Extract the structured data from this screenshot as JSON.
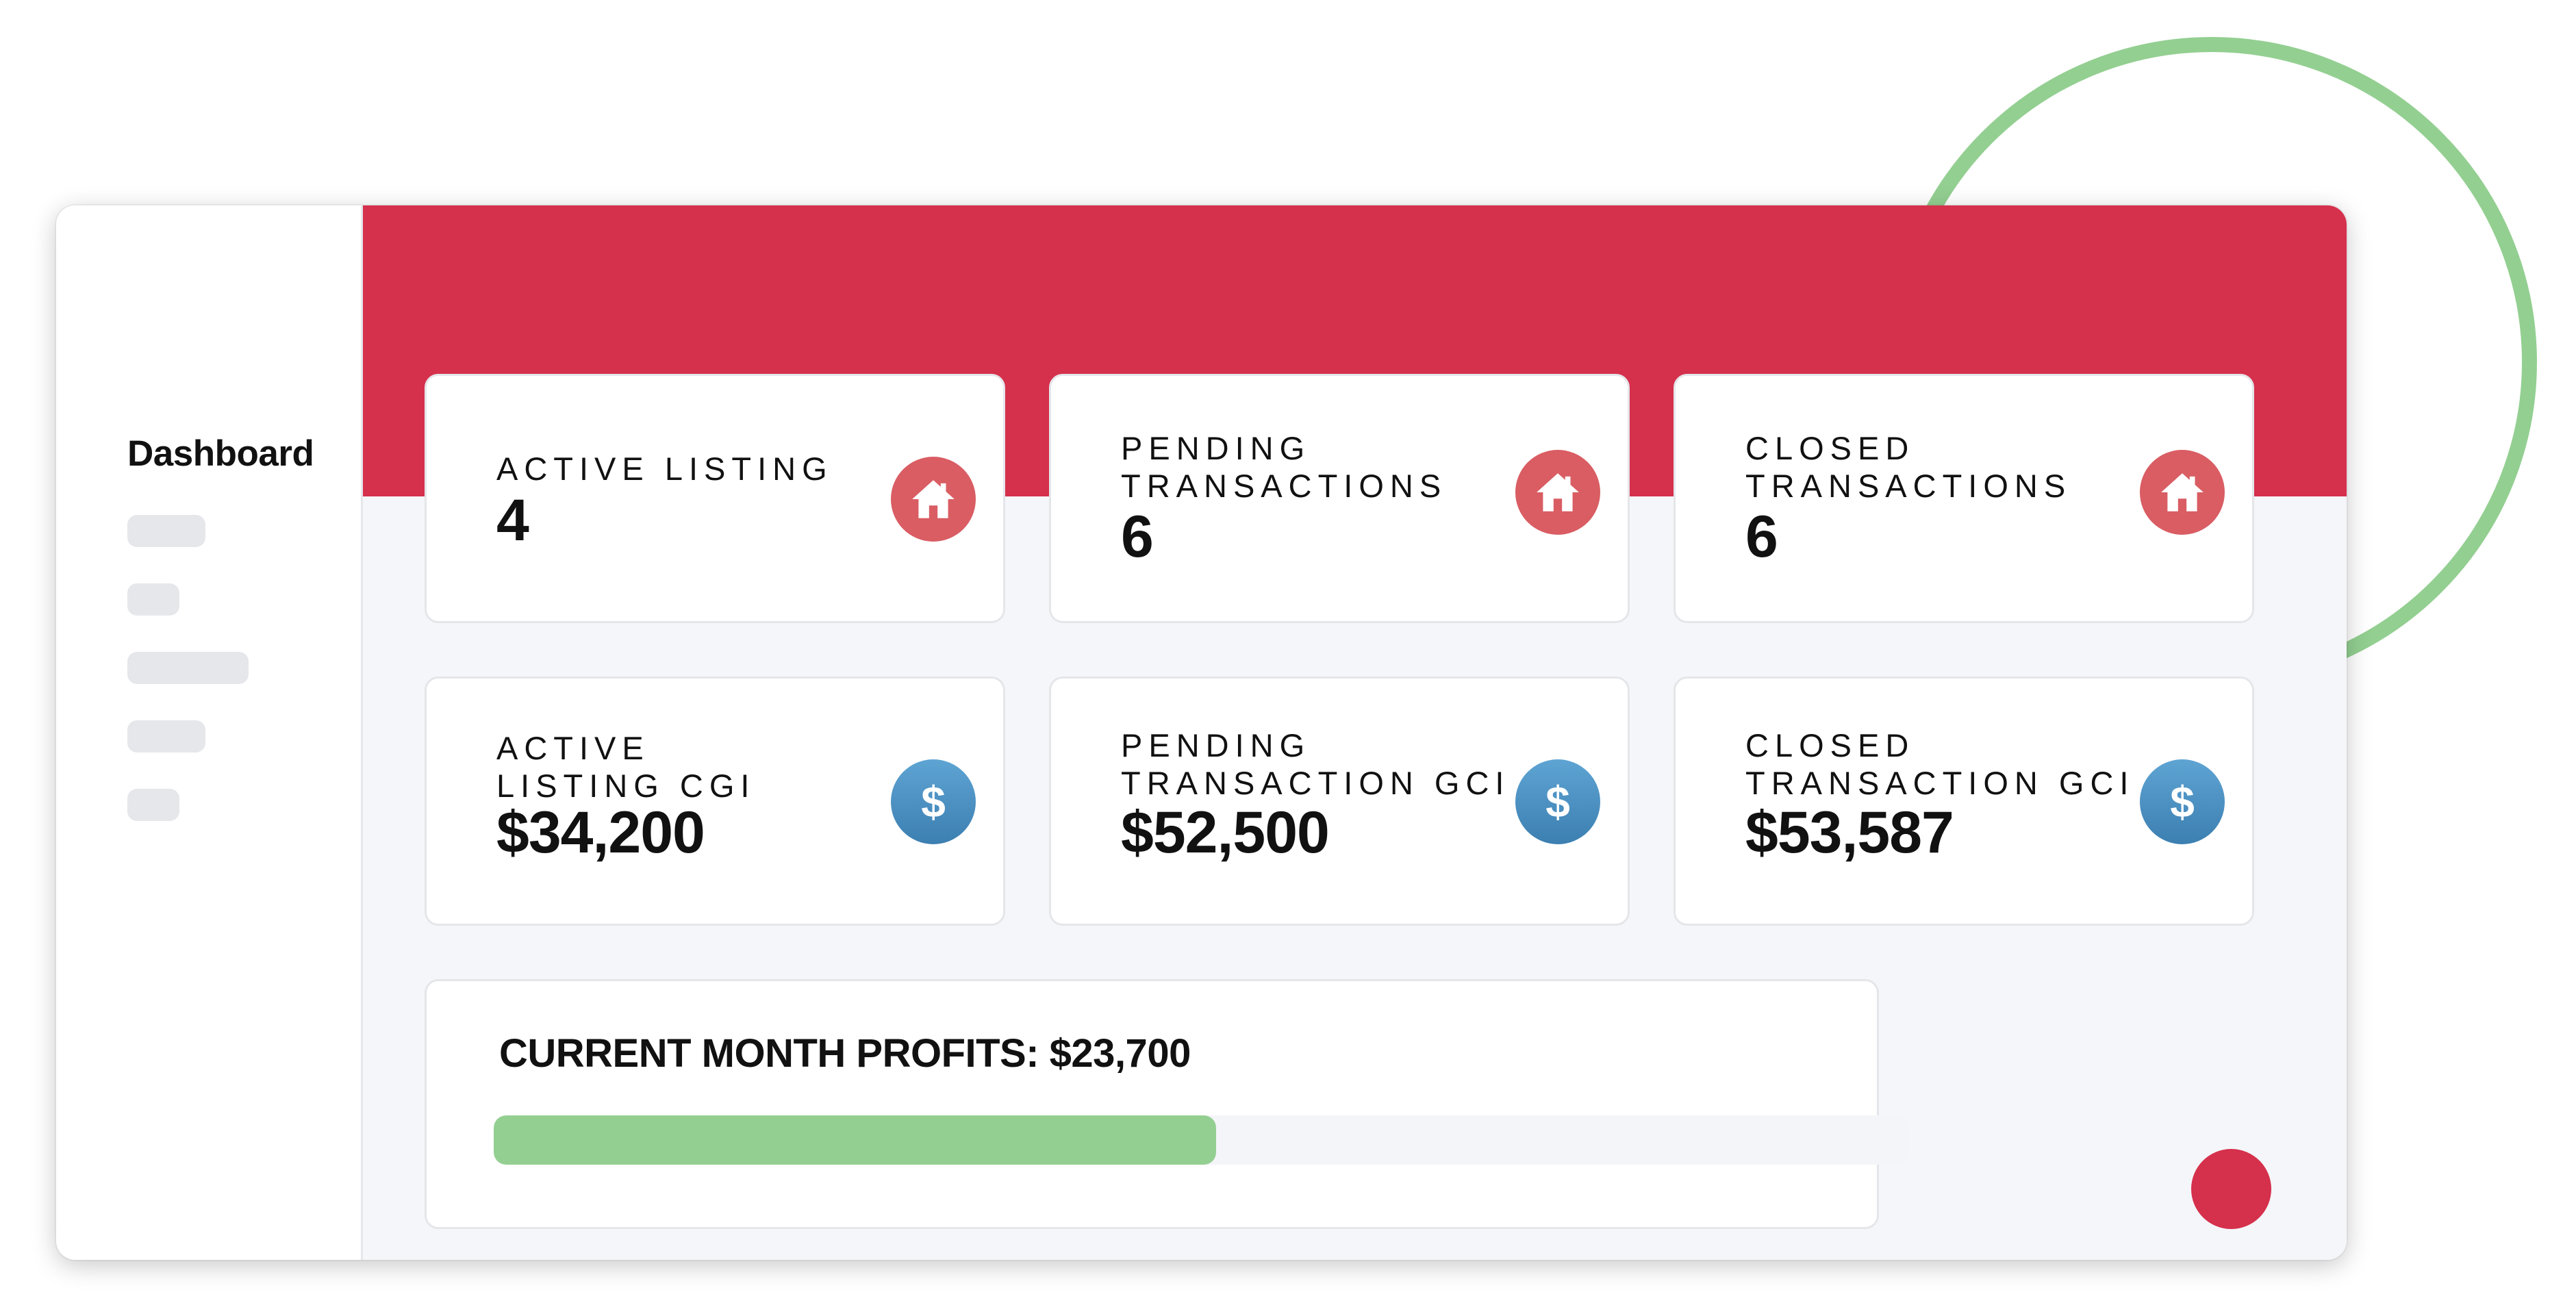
{
  "sidebar": {
    "title": "Dashboard"
  },
  "cards": [
    {
      "label": "ACTIVE LISTING",
      "value": "4",
      "icon": "house-icon"
    },
    {
      "label": "PENDING\nTRANSACTIONS",
      "value": "6",
      "icon": "house-icon"
    },
    {
      "label": "CLOSED\nTRANSACTIONS",
      "value": "6",
      "icon": "house-icon"
    },
    {
      "label": "ACTIVE\nLISTING CGI",
      "value": "$34,200",
      "icon": "dollar-icon"
    },
    {
      "label": "PENDING\nTRANSACTION GCI",
      "value": "$52,500",
      "icon": "dollar-icon"
    },
    {
      "label": "CLOSED\nTRANSACTION GCI",
      "value": "$53,587",
      "icon": "dollar-icon"
    }
  ],
  "icons": {
    "dollar_glyph": "$"
  },
  "profits": {
    "title": "CURRENT MONTH PROFITS: $23,700",
    "progress_fraction": 0.51
  },
  "colors": {
    "header_red": "#d5304c",
    "house_icon_bg": "#d95d63",
    "dollar_icon_bg": "#4a8fc2",
    "progress_green": "#94cf92",
    "ring_green": "#93cf91"
  }
}
